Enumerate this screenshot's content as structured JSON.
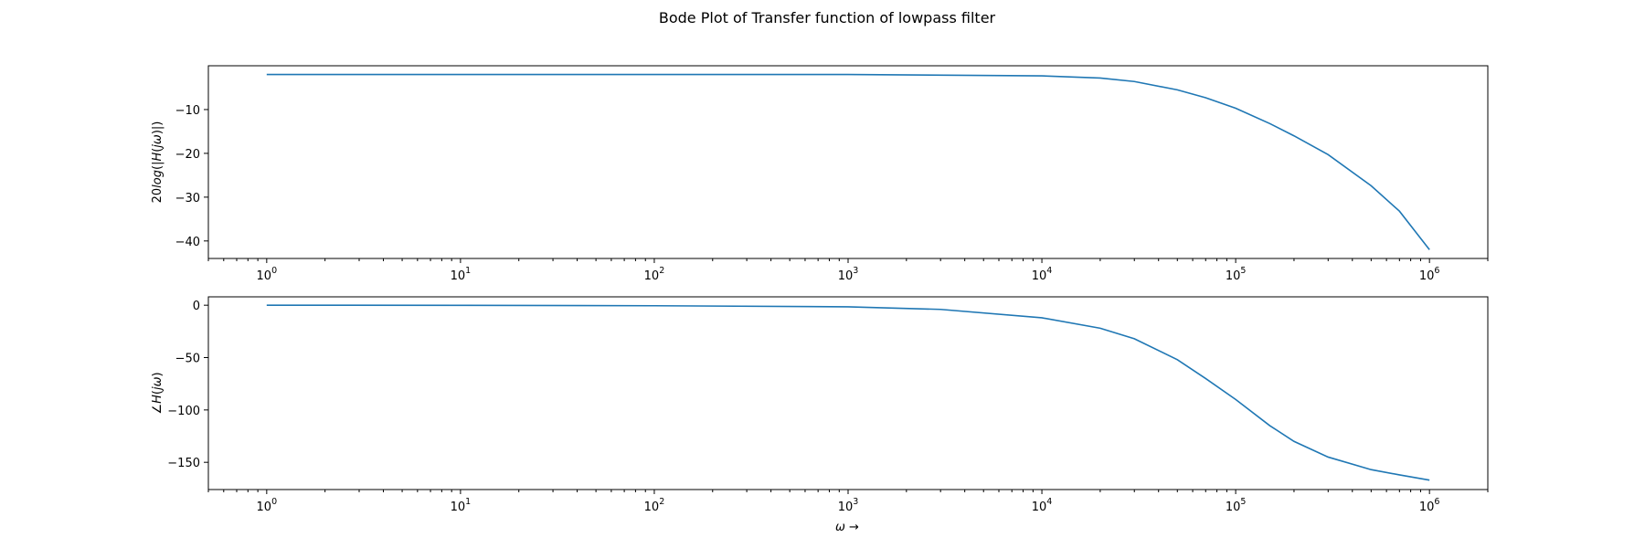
{
  "title": "Bode Plot of Transfer function of lowpass filter",
  "chart_data": [
    {
      "type": "line",
      "id": "magnitude",
      "x_scale": "log",
      "xlim": [
        0.5,
        2000000
      ],
      "ylim": [
        -44,
        0
      ],
      "xlabel": "",
      "ylabel": {
        "prefix": "20",
        "italic": "log",
        "open": "(|",
        "func": "H",
        "arg_open": "(",
        "j": "j",
        "omega": "ω",
        "close": ")|)"
      },
      "x_ticks": [
        {
          "base": "10",
          "exp": "0",
          "value": 1
        },
        {
          "base": "10",
          "exp": "1",
          "value": 10
        },
        {
          "base": "10",
          "exp": "2",
          "value": 100
        },
        {
          "base": "10",
          "exp": "3",
          "value": 1000
        },
        {
          "base": "10",
          "exp": "4",
          "value": 10000
        },
        {
          "base": "10",
          "exp": "5",
          "value": 100000
        },
        {
          "base": "10",
          "exp": "6",
          "value": 1000000
        }
      ],
      "y_ticks": [
        {
          "label": "−10",
          "value": -10
        },
        {
          "label": "−20",
          "value": -20
        },
        {
          "label": "−30",
          "value": -30
        },
        {
          "label": "−40",
          "value": -40
        }
      ],
      "series": [
        {
          "color": "#1f77b4",
          "x": [
            1,
            10,
            100,
            1000,
            10000,
            20000,
            30000,
            50000,
            70000,
            100000,
            150000,
            200000,
            300000,
            500000,
            700000,
            1000000
          ],
          "y": [
            -2.0,
            -2.0,
            -2.0,
            -2.0,
            -2.3,
            -2.8,
            -3.6,
            -5.5,
            -7.3,
            -9.7,
            -13.2,
            -16.0,
            -20.3,
            -27.4,
            -33.2,
            -42.0
          ]
        }
      ]
    },
    {
      "type": "line",
      "id": "phase",
      "x_scale": "log",
      "xlim": [
        0.5,
        2000000
      ],
      "ylim": [
        -176,
        8
      ],
      "xlabel": {
        "omega": "ω",
        "arrow": "→"
      },
      "ylabel": {
        "angle": "∠",
        "func": "H",
        "arg_open": "(",
        "j": "j",
        "omega": "ω",
        "close": ")"
      },
      "x_ticks": [
        {
          "base": "10",
          "exp": "0",
          "value": 1
        },
        {
          "base": "10",
          "exp": "1",
          "value": 10
        },
        {
          "base": "10",
          "exp": "2",
          "value": 100
        },
        {
          "base": "10",
          "exp": "3",
          "value": 1000
        },
        {
          "base": "10",
          "exp": "4",
          "value": 10000
        },
        {
          "base": "10",
          "exp": "5",
          "value": 100000
        },
        {
          "base": "10",
          "exp": "6",
          "value": 1000000
        }
      ],
      "y_ticks": [
        {
          "label": "0",
          "value": 0
        },
        {
          "label": "−50",
          "value": -50
        },
        {
          "label": "−100",
          "value": -100
        },
        {
          "label": "−150",
          "value": -150
        }
      ],
      "series": [
        {
          "color": "#1f77b4",
          "x": [
            1,
            10,
            100,
            1000,
            3000,
            10000,
            20000,
            30000,
            50000,
            70000,
            100000,
            150000,
            200000,
            300000,
            500000,
            700000,
            1000000
          ],
          "y": [
            0,
            -0.1,
            -0.5,
            -1.5,
            -4,
            -12,
            -22,
            -32,
            -52,
            -70,
            -90,
            -115,
            -130,
            -145,
            -157,
            -162,
            -167
          ]
        }
      ]
    }
  ]
}
